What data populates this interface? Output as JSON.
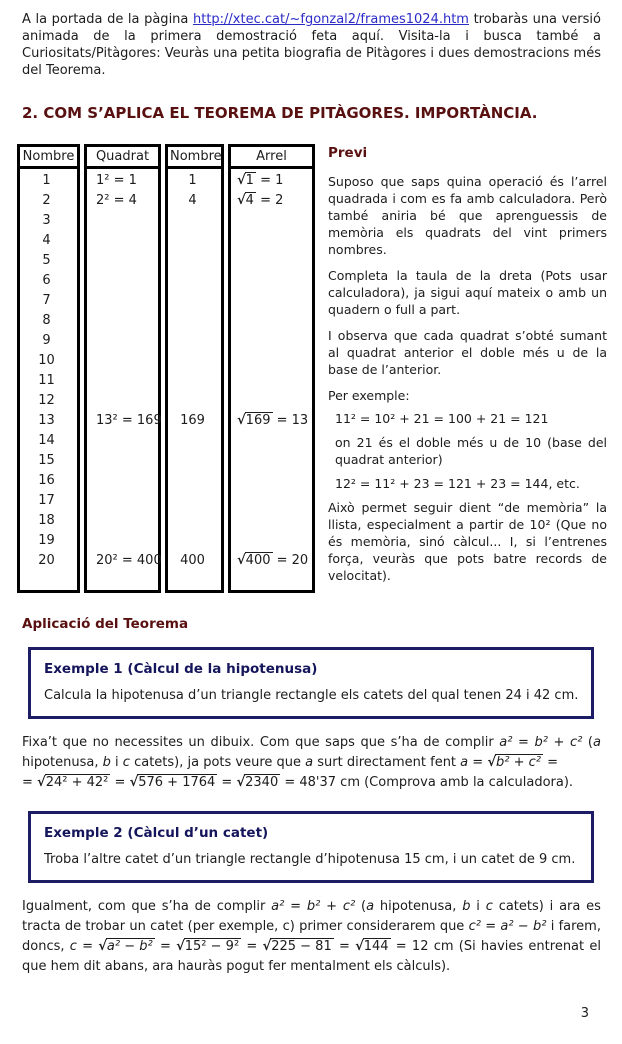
{
  "intro": {
    "segments": [
      {
        "v": "A la portada de la pàgina  "
      },
      {
        "v": "http://xtec.cat/~fgonzal2/frames1024.htm",
        "link": true,
        "name": "url-link"
      },
      {
        "v": "  trobaràs una versió animada de la primera demostració feta aquí. Visita-la i busca també a Curiositats/Pitàgores: Veuràs una petita biografia de Pitàgores i dues demostracions més del Teorema."
      }
    ]
  },
  "heading": {
    "title": "2. COM S’APLICA EL TEOREMA DE PITÀGORES. IMPORTÀNCIA."
  },
  "table": {
    "headers": [
      "Nombre",
      "Quadrat",
      "Nombre",
      "Arrel"
    ],
    "sqrt_sign": "√",
    "nombres": [
      "1",
      "2",
      "3",
      "4",
      "5",
      "6",
      "7",
      "8",
      "9",
      "10",
      "11",
      "12",
      "13",
      "14",
      "15",
      "16",
      "17",
      "18",
      "19",
      "20"
    ],
    "quadrats": [
      "1² = 1",
      "2² = 4",
      "",
      "",
      "",
      "",
      "",
      "",
      "",
      "",
      "",
      "",
      "13² = 169",
      "",
      "",
      "",
      "",
      "",
      "",
      "20² = 400"
    ],
    "valors": [
      "1",
      "4",
      "",
      "",
      "",
      "",
      "",
      "",
      "",
      "",
      "",
      "",
      "169",
      "",
      "",
      "",
      "",
      "",
      "",
      "400"
    ],
    "arrels": [
      {
        "r": "1",
        "e": " = 1"
      },
      {
        "r": "4",
        "e": " = 2"
      },
      {
        "r": "",
        "e": ""
      },
      {
        "r": "",
        "e": ""
      },
      {
        "r": "",
        "e": ""
      },
      {
        "r": "",
        "e": ""
      },
      {
        "r": "",
        "e": ""
      },
      {
        "r": "",
        "e": ""
      },
      {
        "r": "",
        "e": ""
      },
      {
        "r": "",
        "e": ""
      },
      {
        "r": "",
        "e": ""
      },
      {
        "r": "",
        "e": ""
      },
      {
        "r": "169",
        "e": " = 13"
      },
      {
        "r": "",
        "e": ""
      },
      {
        "r": "",
        "e": ""
      },
      {
        "r": "",
        "e": ""
      },
      {
        "r": "",
        "e": ""
      },
      {
        "r": "",
        "e": ""
      },
      {
        "r": "",
        "e": ""
      },
      {
        "r": "400",
        "e": " = 20"
      }
    ]
  },
  "previ": {
    "title": "Previ",
    "p1": "Suposo que saps quina operació és l’arrel quadrada i com es fa amb calculadora. Però també aniria bé que aprenguessis de memòria els quadrats del vint primers nombres.",
    "p2": "Completa la taula de la dreta (Pots usar calculadora), ja sigui aquí mateix o amb un quadern o full a part.",
    "p3": "I observa que cada quadrat s’obté sumant al quadrat anterior el doble més u de la base de l’anterior.",
    "p4": "Per exemple:",
    "f1": "11² = 10² + 21 = 100 + 21 = 121",
    "p5": "on 21 és el doble més u de 10 (base del quadrat anterior)",
    "f2": "12² = 11² + 23 = 121 + 23 = 144, etc.",
    "p6": "Això permet seguir dient “de memòria” la llista, especialment a partir de 10² (Que no és memòria, sinó càlcul... I, si l’entrenes força, veuràs que pots batre records de velocitat)."
  },
  "aplicacio": {
    "title": "Aplicació del Teorema"
  },
  "exemple1": {
    "title": "Exemple 1 (Càlcul de la hipotenusa)",
    "body": "Calcula la hipotenusa d’un triangle rectangle els catets del qual tenen 24 i 42 cm."
  },
  "para_a": {
    "segments": [
      {
        "v": "Fixa’t que no necessites un dibuix. Com que saps que s’ha de complir  "
      },
      {
        "v": "a² = b² + c²",
        "i": true
      },
      {
        "v": "  ("
      },
      {
        "v": "a",
        "i": true
      },
      {
        "v": " hipotenusa, "
      },
      {
        "v": "b",
        "i": true
      },
      {
        "v": " i "
      },
      {
        "v": "c",
        "i": true
      },
      {
        "v": " catets), ja pots veure que "
      },
      {
        "v": "a",
        "i": true
      },
      {
        "v": " surt directament fent  "
      },
      {
        "v": "a",
        "i": true
      },
      {
        "v": " = "
      },
      {
        "v": "b² + c²",
        "sq": true,
        "i": true
      },
      {
        "v": " ="
      },
      {
        "br": true
      },
      {
        "v": "= "
      },
      {
        "v": "24² + 42²",
        "sq": true
      },
      {
        "v": " = "
      },
      {
        "v": "576 + 1764",
        "sq": true
      },
      {
        "v": " = "
      },
      {
        "v": "2340",
        "sq": true
      },
      {
        "v": " = 48'37 cm  (Comprova amb la calculadora)."
      }
    ]
  },
  "exemple2": {
    "title": "Exemple 2 (Càlcul d’un catet)",
    "body": "Troba l’altre catet d’un triangle rectangle d’hipotenusa 15 cm, i un catet de 9 cm."
  },
  "para_b": {
    "segments": [
      {
        "v": "Igualment, com que s’ha de complir "
      },
      {
        "v": "a² = b² + c²",
        "i": true
      },
      {
        "v": "  ("
      },
      {
        "v": "a",
        "i": true
      },
      {
        "v": " hipotenusa, "
      },
      {
        "v": "b",
        "i": true
      },
      {
        "v": " i "
      },
      {
        "v": "c",
        "i": true
      },
      {
        "v": " catets) i ara es tracta de trobar un catet (per exemple, c) primer considerarem que  "
      },
      {
        "v": "c² = a² − b²",
        "i": true
      },
      {
        "v": "  i farem, doncs,  "
      },
      {
        "v": "c",
        "i": true
      },
      {
        "v": " = "
      },
      {
        "v": "a² − b²",
        "sq": true,
        "i": true
      },
      {
        "v": " = "
      },
      {
        "v": "15² − 9²",
        "sq": true
      },
      {
        "v": " = "
      },
      {
        "v": "225 − 81",
        "sq": true
      },
      {
        "v": " = "
      },
      {
        "v": "144",
        "sq": true
      },
      {
        "v": " = 12 cm   (Si havies entrenat el que hem dit abans, ara hauràs pogut fer mentalment els càlculs)."
      }
    ]
  },
  "footer": {
    "page_number": "3"
  },
  "colors": {
    "heading_maroon": "#581010",
    "box_navy": "#1d1d66",
    "link_blue": "#2b2bc8",
    "table_border": "#000000"
  }
}
